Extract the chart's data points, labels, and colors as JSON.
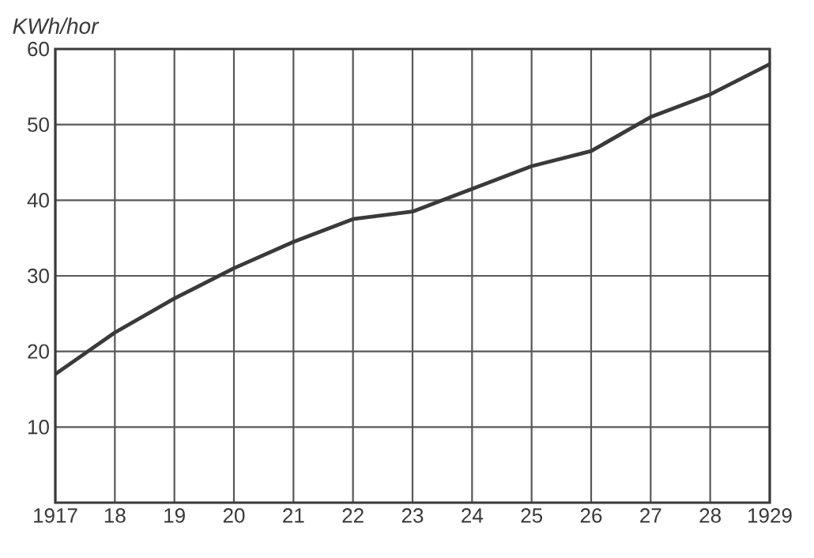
{
  "chart_data": {
    "type": "line",
    "ylabel": "KWh/hor",
    "x": [
      1917,
      1918,
      1919,
      1920,
      1921,
      1922,
      1923,
      1924,
      1925,
      1926,
      1927,
      1928,
      1929
    ],
    "values": [
      17,
      22.5,
      27,
      31,
      34.5,
      37.5,
      38.5,
      41.5,
      44.5,
      46.5,
      51,
      54,
      58
    ],
    "color": "#3a3a3a",
    "xlim": [
      1917,
      1929
    ],
    "ylim": [
      0,
      60
    ],
    "xticks": [
      1917,
      {
        "value": 1918,
        "label": "18"
      },
      {
        "value": 1919,
        "label": "19"
      },
      {
        "value": 1920,
        "label": "20"
      },
      {
        "value": 1921,
        "label": "21"
      },
      {
        "value": 1922,
        "label": "22"
      },
      {
        "value": 1923,
        "label": "23"
      },
      {
        "value": 1924,
        "label": "24"
      },
      {
        "value": 1925,
        "label": "25"
      },
      {
        "value": 1926,
        "label": "26"
      },
      {
        "value": 1927,
        "label": "27"
      },
      {
        "value": 1928,
        "label": "28"
      },
      1929
    ],
    "yticks": [
      10,
      20,
      30,
      40,
      50,
      60
    ],
    "grid": true
  }
}
